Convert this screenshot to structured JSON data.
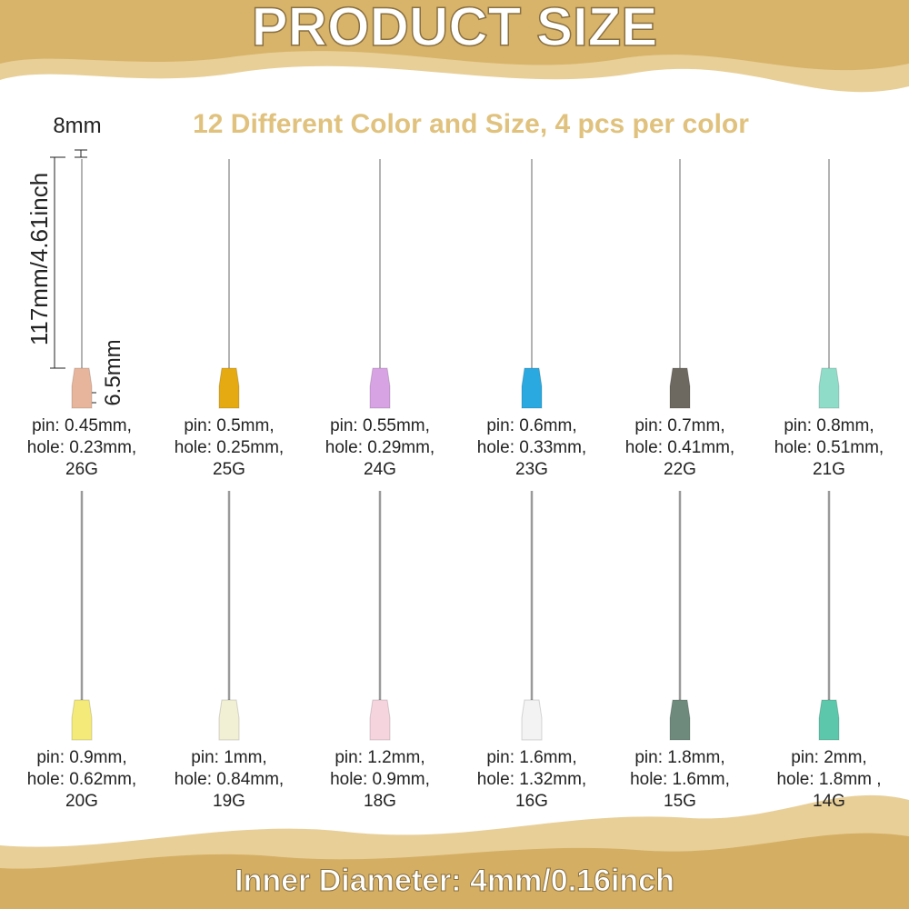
{
  "header": {
    "title": "PRODUCT SIZE",
    "subtitle": "12 Different Color and Size, 4 pcs per color"
  },
  "dimensions": {
    "tip": "8mm",
    "length": "117mm/4.61inch",
    "hub": "6.5mm"
  },
  "needles": [
    {
      "pin": "pin: 0.45mm,",
      "hole": "hole: 0.23mm,",
      "gauge": "26G"
    },
    {
      "pin": "pin: 0.5mm,",
      "hole": "hole: 0.25mm,",
      "gauge": "25G"
    },
    {
      "pin": "pin: 0.55mm,",
      "hole": "hole: 0.29mm,",
      "gauge": "24G"
    },
    {
      "pin": "pin: 0.6mm,",
      "hole": "hole: 0.33mm,",
      "gauge": "23G"
    },
    {
      "pin": "pin: 0.7mm,",
      "hole": "hole: 0.41mm,",
      "gauge": "22G"
    },
    {
      "pin": "pin: 0.8mm,",
      "hole": "hole: 0.51mm,",
      "gauge": "21G"
    },
    {
      "pin": "pin: 0.9mm,",
      "hole": "hole: 0.62mm,",
      "gauge": "20G"
    },
    {
      "pin": "pin: 1mm,",
      "hole": "hole: 0.84mm,",
      "gauge": "19G"
    },
    {
      "pin": "pin: 1.2mm,",
      "hole": "hole: 0.9mm,",
      "gauge": "18G"
    },
    {
      "pin": "pin: 1.6mm,",
      "hole": "hole: 1.32mm,",
      "gauge": "16G"
    },
    {
      "pin": "pin: 1.8mm,",
      "hole": "hole: 1.6mm,",
      "gauge": "15G"
    },
    {
      "pin": "pin: 2mm,",
      "hole": "hole: 1.8mm ,",
      "gauge": "14G"
    }
  ],
  "footer": {
    "text": "Inner Diameter: 4mm/0.16inch"
  }
}
